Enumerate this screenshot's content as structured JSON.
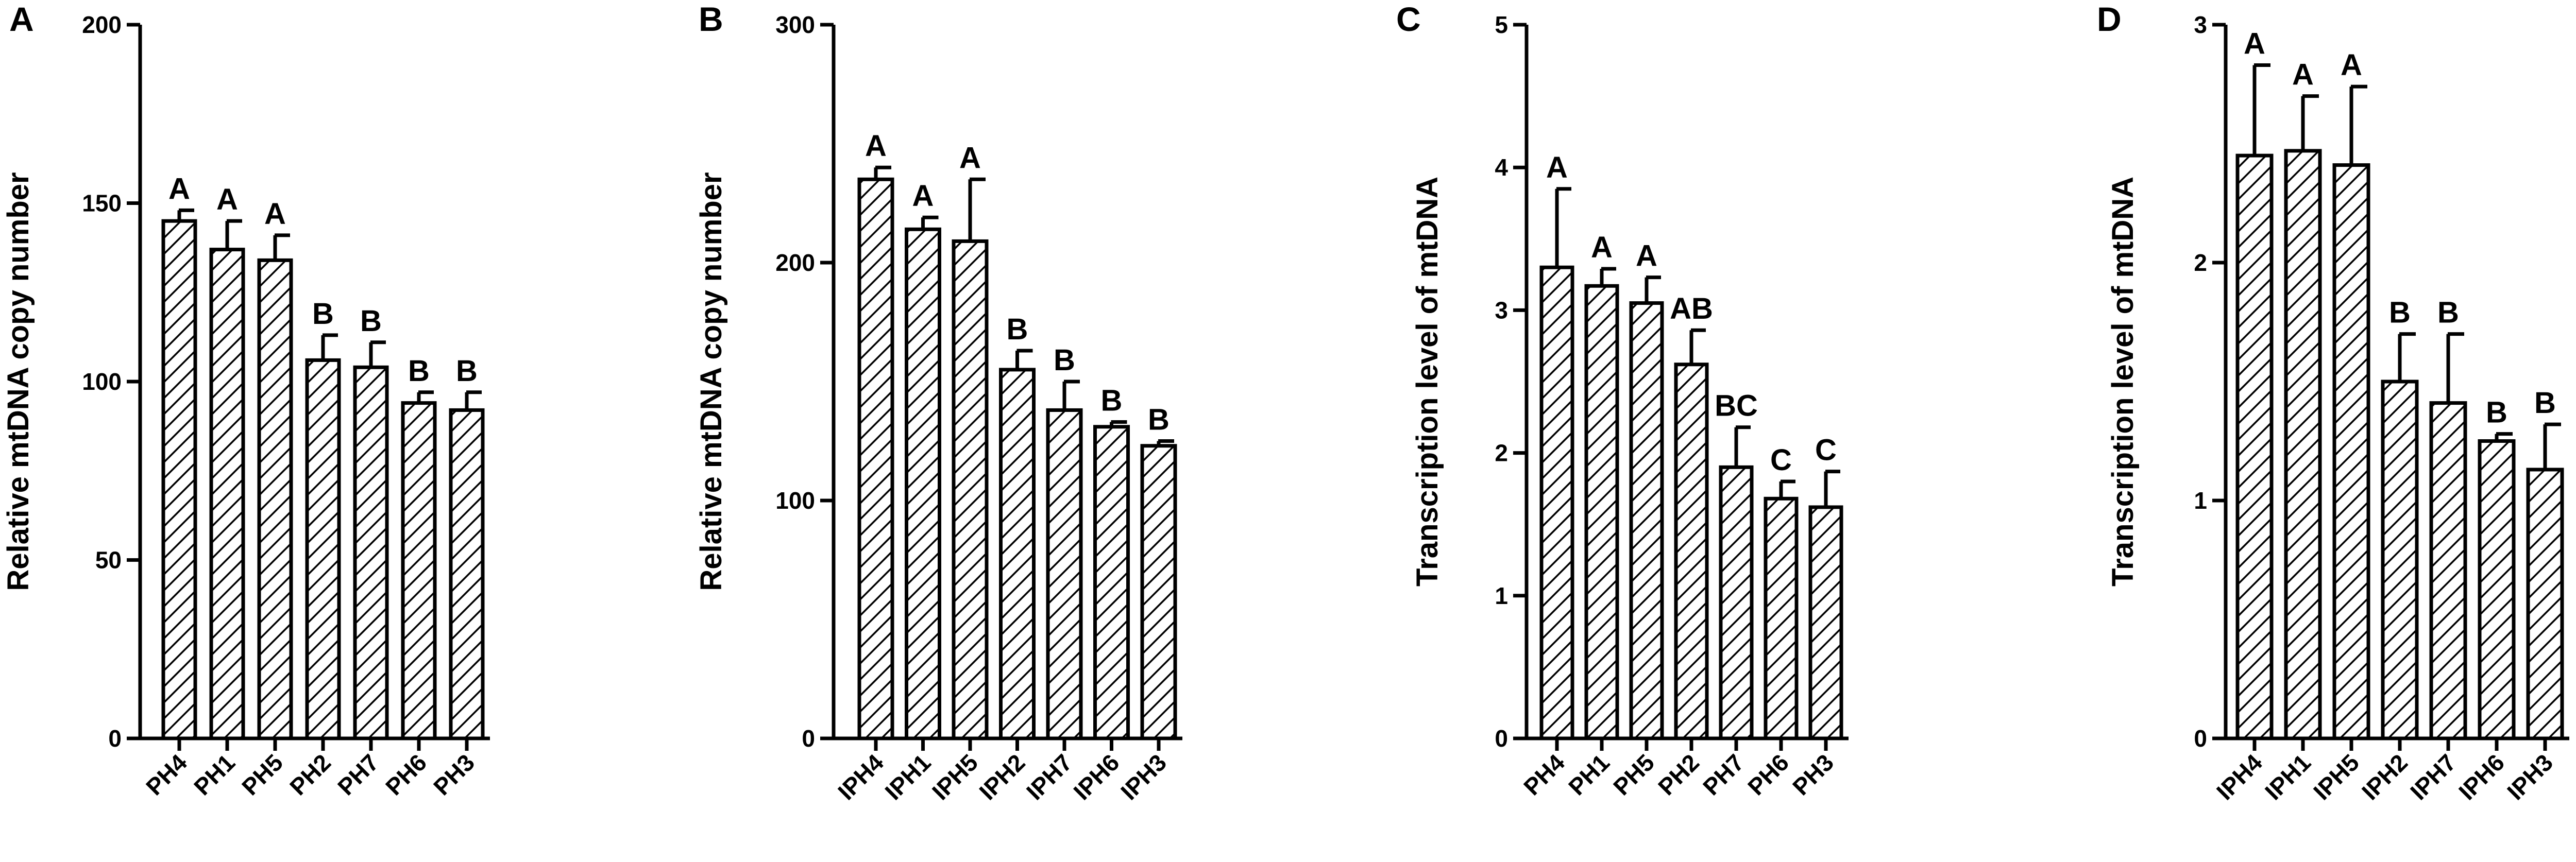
{
  "chart_data": [
    {
      "type": "bar",
      "panel": "A",
      "ylabel": "Relative mtDNA copy number",
      "ylim": [
        0,
        200
      ],
      "yticks": [
        0,
        50,
        100,
        150,
        200
      ],
      "categories": [
        "PH4",
        "PH1",
        "PH5",
        "PH2",
        "PH7",
        "PH6",
        "PH3"
      ],
      "values": [
        145,
        137,
        134,
        106,
        104,
        94,
        92
      ],
      "errors": [
        3,
        8,
        7,
        7,
        7,
        3,
        5
      ],
      "letters": [
        "A",
        "A",
        "A",
        "B",
        "B",
        "B",
        "B"
      ],
      "pattern": "diagonal-hatch",
      "grid": false
    },
    {
      "type": "bar",
      "panel": "B",
      "ylabel": "Relative mtDNA copy number",
      "ylim": [
        0,
        300
      ],
      "yticks": [
        0,
        100,
        200,
        300
      ],
      "categories": [
        "IPH4",
        "IPH1",
        "IPH5",
        "IPH2",
        "IPH7",
        "IPH6",
        "IPH3"
      ],
      "values": [
        235,
        214,
        209,
        155,
        138,
        131,
        123
      ],
      "errors": [
        5,
        5,
        26,
        8,
        12,
        2,
        2
      ],
      "letters": [
        "A",
        "A",
        "A",
        "B",
        "B",
        "B",
        "B"
      ],
      "pattern": "diagonal-hatch",
      "grid": false
    },
    {
      "type": "bar",
      "panel": "C",
      "ylabel": "Transcription level of mtDNA",
      "ylim": [
        0,
        5
      ],
      "yticks": [
        0,
        1,
        2,
        3,
        4,
        5
      ],
      "categories": [
        "PH4",
        "PH1",
        "PH5",
        "PH2",
        "PH7",
        "PH6",
        "PH3"
      ],
      "values": [
        3.3,
        3.17,
        3.05,
        2.62,
        1.9,
        1.68,
        1.62
      ],
      "errors": [
        0.55,
        0.12,
        0.18,
        0.24,
        0.28,
        0.12,
        0.25
      ],
      "letters": [
        "A",
        "A",
        "A",
        "AB",
        "BC",
        "C",
        "C"
      ],
      "pattern": "diagonal-hatch",
      "grid": false
    },
    {
      "type": "bar",
      "panel": "D",
      "ylabel": "Transcription level of mtDNA",
      "ylim": [
        0,
        3
      ],
      "yticks": [
        0,
        1,
        2,
        3
      ],
      "categories": [
        "IPH4",
        "IPH1",
        "IPH5",
        "IPH2",
        "IPH7",
        "IPH6",
        "IPH3"
      ],
      "values": [
        2.45,
        2.47,
        2.41,
        1.5,
        1.41,
        1.25,
        1.13
      ],
      "errors": [
        0.38,
        0.23,
        0.33,
        0.2,
        0.29,
        0.03,
        0.19
      ],
      "letters": [
        "A",
        "A",
        "A",
        "B",
        "B",
        "B",
        "B"
      ],
      "pattern": "diagonal-hatch",
      "grid": false
    }
  ]
}
